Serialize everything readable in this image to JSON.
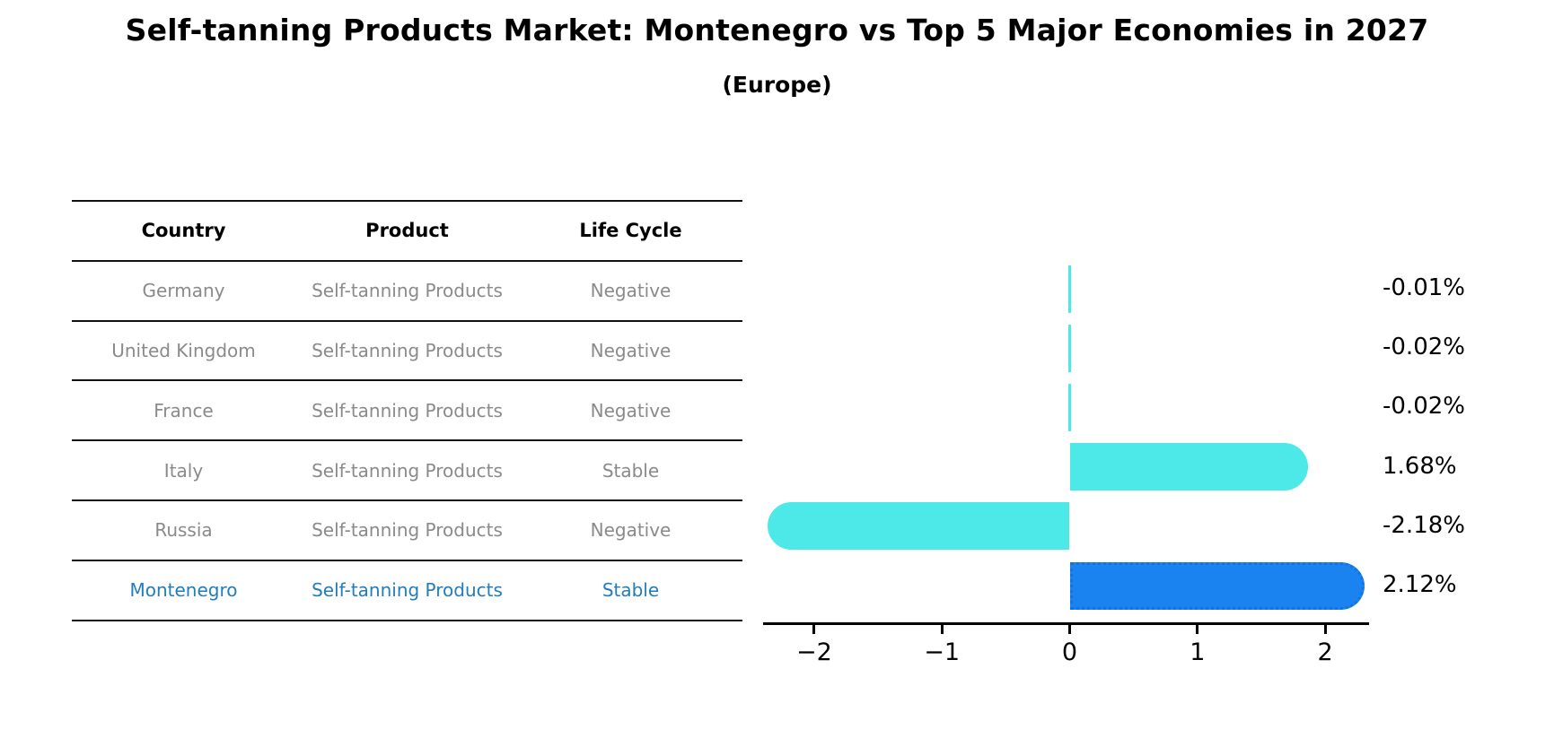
{
  "header": {
    "title": "Self-tanning Products Market: Montenegro vs Top 5 Major Economies in 2027",
    "subtitle": "(Europe)"
  },
  "table": {
    "columns": [
      "Country",
      "Product",
      "Life Cycle"
    ],
    "rows": [
      {
        "country": "Germany",
        "product": "Self-tanning Products",
        "life_cycle": "Negative",
        "highlight": false
      },
      {
        "country": "United Kingdom",
        "product": "Self-tanning Products",
        "life_cycle": "Negative",
        "highlight": false
      },
      {
        "country": "France",
        "product": "Self-tanning Products",
        "life_cycle": "Negative",
        "highlight": false
      },
      {
        "country": "Italy",
        "product": "Self-tanning Products",
        "life_cycle": "Stable",
        "highlight": false
      },
      {
        "country": "Russia",
        "product": "Self-tanning Products",
        "life_cycle": "Negative",
        "highlight": false
      },
      {
        "country": "Montenegro",
        "product": "Self-tanning Products",
        "life_cycle": "Stable",
        "highlight": true
      }
    ]
  },
  "chart_data": {
    "type": "bar",
    "orientation": "horizontal",
    "title": "Self-tanning Products Market: Montenegro vs Top 5 Major Economies in 2027 (Europe)",
    "categories": [
      "Germany",
      "United Kingdom",
      "France",
      "Italy",
      "Russia",
      "Montenegro"
    ],
    "values": [
      -0.01,
      -0.02,
      -0.02,
      1.68,
      -2.18,
      2.12
    ],
    "value_labels": [
      "-0.01%",
      "-0.02%",
      "-0.02%",
      "1.68%",
      "-2.18%",
      "2.12%"
    ],
    "unit": "percent",
    "xlim": [
      -2.4,
      2.35
    ],
    "x_ticks": [
      -2,
      -1,
      0,
      1,
      2
    ],
    "x_tick_labels": [
      "−2",
      "−1",
      "0",
      "1",
      "2"
    ],
    "grid": false,
    "legend": false,
    "highlight_index": 5,
    "bar_color": "#4DE8E8",
    "highlight_color": "#1A83F0",
    "highlight_border_color": "#1373DE"
  },
  "colors": {
    "text": "#000000",
    "table_text": "#8a8a8a",
    "highlight_text": "#217DBB",
    "background": "#ffffff"
  }
}
